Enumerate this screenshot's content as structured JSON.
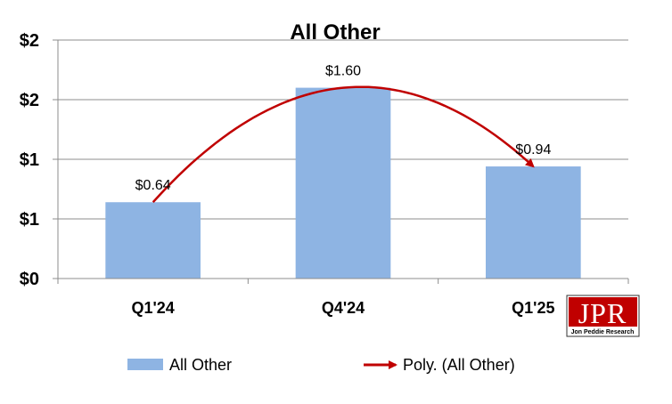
{
  "chart_data": {
    "type": "bar",
    "title": "All Other",
    "categories": [
      "Q1'24",
      "Q4'24",
      "Q1'25"
    ],
    "series": [
      {
        "name": "All Other",
        "values": [
          0.64,
          1.6,
          0.94
        ],
        "color": "#8EB4E3"
      }
    ],
    "data_labels": [
      "$0.64",
      "$1.60",
      "$0.94"
    ],
    "trendline": {
      "name": "Poly. (All Other)",
      "type": "polynomial",
      "color": "#C00000"
    },
    "y_tick_labels": [
      "$0",
      "$1",
      "$1",
      "$2",
      "$2"
    ],
    "ylim": [
      0,
      2.0
    ],
    "grid": true,
    "legend_position": "bottom"
  },
  "logo": {
    "mark": "JPR",
    "subtitle": "Jon Peddie Research"
  }
}
